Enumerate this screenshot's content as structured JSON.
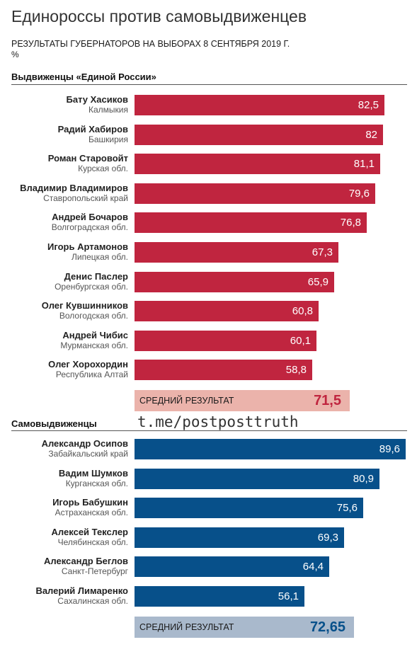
{
  "title": "Единороссы против самовыдвиженцев",
  "subtitle": "РЕЗУЛЬТАТЫ ГУБЕРНАТОРОВ НА ВЫБОРАХ 8 СЕНТЯБРЯ 2019 Г.",
  "unit": "%",
  "watermark": "t.me/postposttruth",
  "colors": {
    "er_bar": "#c0253f",
    "er_avg_bg": "#ebb3ab",
    "er_avg_text": "#c0253f",
    "self_bar": "#07508a",
    "self_avg_bg": "#a9b9cc",
    "self_avg_text": "#07508a"
  },
  "chart_data": {
    "type": "bar",
    "orientation": "horizontal",
    "xlim": [
      0,
      90
    ],
    "groups": [
      {
        "name": "Выдвиженцы «Единой России»",
        "average_label": "СРЕДНИЙ РЕЗУЛЬТАТ",
        "average": "71,5",
        "average_value": 71.5,
        "items": [
          {
            "name": "Бату Хасиков",
            "region": "Калмыкия",
            "value": 82.5,
            "label": "82,5"
          },
          {
            "name": "Радий Хабиров",
            "region": "Башкирия",
            "value": 82,
            "label": "82"
          },
          {
            "name": "Роман Старовойт",
            "region": "Курская обл.",
            "value": 81.1,
            "label": "81,1"
          },
          {
            "name": "Владимир Владимиров",
            "region": "Ставропольский край",
            "value": 79.6,
            "label": "79,6"
          },
          {
            "name": "Андрей Бочаров",
            "region": "Волгоградская обл.",
            "value": 76.8,
            "label": "76,8"
          },
          {
            "name": "Игорь Артамонов",
            "region": "Липецкая обл.",
            "value": 67.3,
            "label": "67,3"
          },
          {
            "name": "Денис Паслер",
            "region": "Оренбургская обл.",
            "value": 65.9,
            "label": "65,9"
          },
          {
            "name": "Олег Кувшинников",
            "region": "Вологодская обл.",
            "value": 60.8,
            "label": "60,8"
          },
          {
            "name": "Андрей Чибис",
            "region": "Мурманская обл.",
            "value": 60.1,
            "label": "60,1"
          },
          {
            "name": "Олег Хорохордин",
            "region": "Республика Алтай",
            "value": 58.8,
            "label": "58,8"
          }
        ]
      },
      {
        "name": "Самовыдвиженцы",
        "average_label": "СРЕДНИЙ РЕЗУЛЬТАТ",
        "average": "72,65",
        "average_value": 72.65,
        "items": [
          {
            "name": "Александр Осипов",
            "region": "Забайкальский край",
            "value": 89.6,
            "label": "89,6"
          },
          {
            "name": "Вадим Шумков",
            "region": "Курганская обл.",
            "value": 80.9,
            "label": "80,9"
          },
          {
            "name": "Игорь Бабушкин",
            "region": "Астраханская обл.",
            "value": 75.6,
            "label": "75,6"
          },
          {
            "name": "Алексей Текслер",
            "region": "Челябинская обл.",
            "value": 69.3,
            "label": "69,3"
          },
          {
            "name": "Александр Беглов",
            "region": "Санкт-Петербург",
            "value": 64.4,
            "label": "64,4"
          },
          {
            "name": "Валерий Лимаренко",
            "region": "Сахалинская обл.",
            "value": 56.1,
            "label": "56,1"
          }
        ]
      }
    ]
  }
}
